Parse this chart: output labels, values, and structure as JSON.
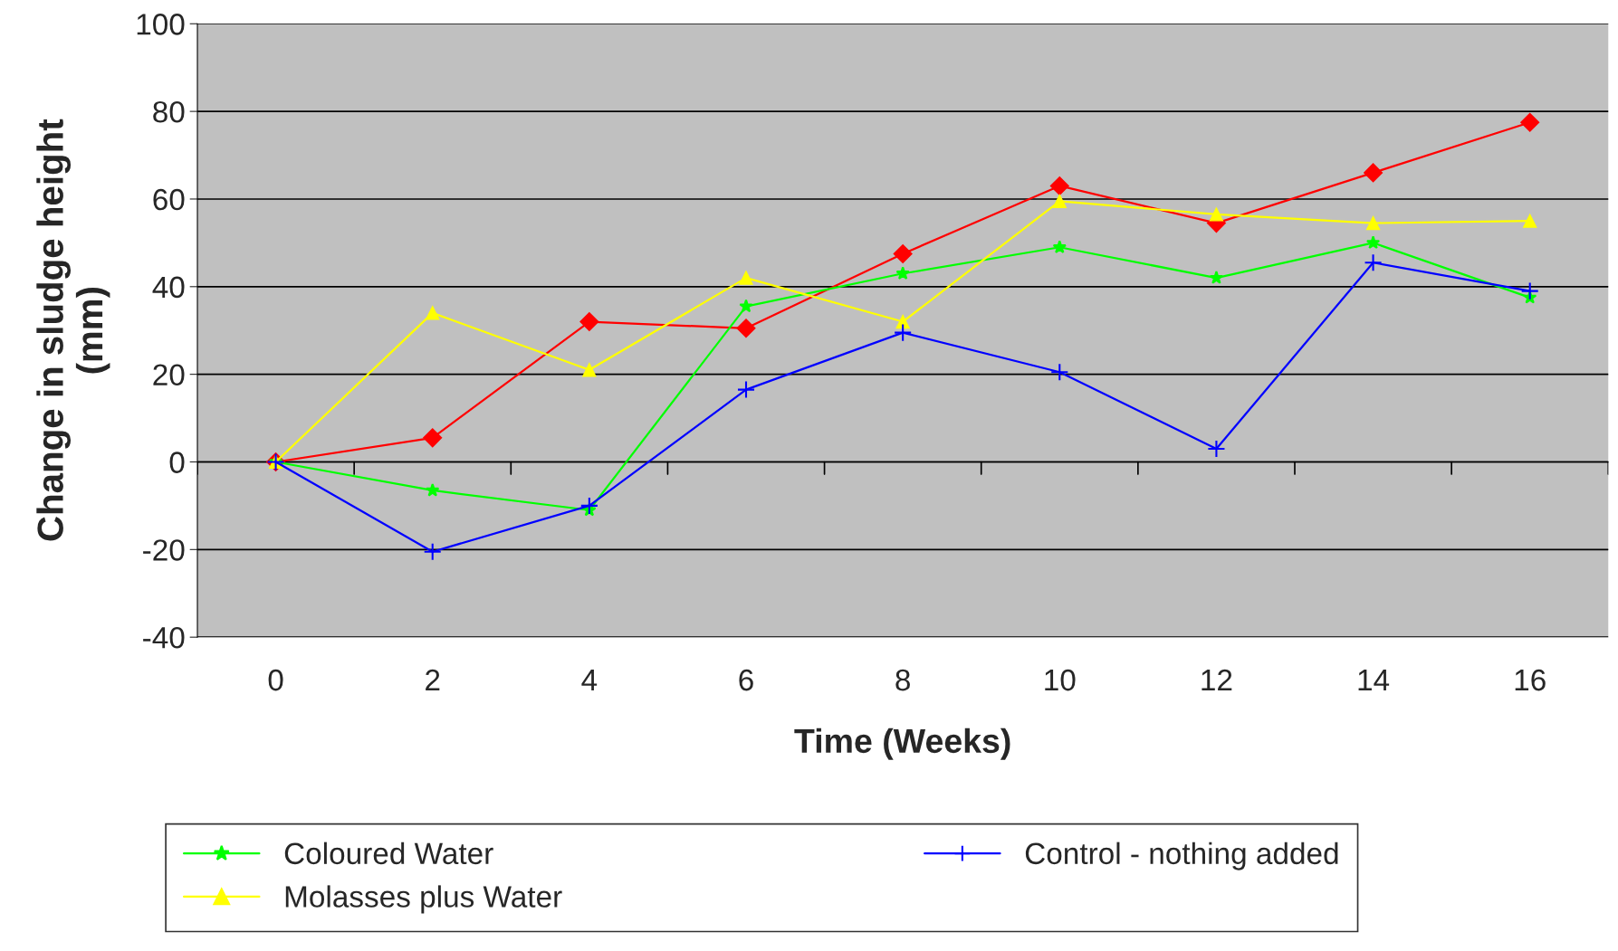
{
  "chart_data": {
    "type": "line",
    "xlabel": "Time (Weeks)",
    "ylabel": "Change in sludge height\n(mm)",
    "categories": [
      "0",
      "2",
      "4",
      "6",
      "8",
      "10",
      "12",
      "14",
      "16"
    ],
    "ylim": [
      -40,
      100
    ],
    "yticks": [
      -40,
      -20,
      0,
      20,
      40,
      60,
      80,
      100
    ],
    "grid": "y",
    "legend": "bottom",
    "series": [
      {
        "color": "#ff0000",
        "marker": "diamond",
        "values": [
          0,
          5.5,
          32,
          30.5,
          47.5,
          63,
          54.5,
          66,
          77.5
        ]
      },
      {
        "name": "Coloured Water",
        "color": "#00ff00",
        "marker": "star",
        "values": [
          0,
          -6.5,
          -11,
          35.5,
          43,
          49,
          42,
          50,
          37.5
        ]
      },
      {
        "name": "Molasses plus Water",
        "color": "#ffff00",
        "marker": "triangle",
        "values": [
          0,
          34,
          21,
          42,
          32,
          59.5,
          56.5,
          54.5,
          55
        ]
      },
      {
        "name": "Control - nothing added",
        "color": "#0000ff",
        "marker": "cross",
        "values": [
          0,
          -20.5,
          -10,
          16.5,
          29.5,
          20.5,
          3,
          45.5,
          39
        ]
      }
    ]
  }
}
